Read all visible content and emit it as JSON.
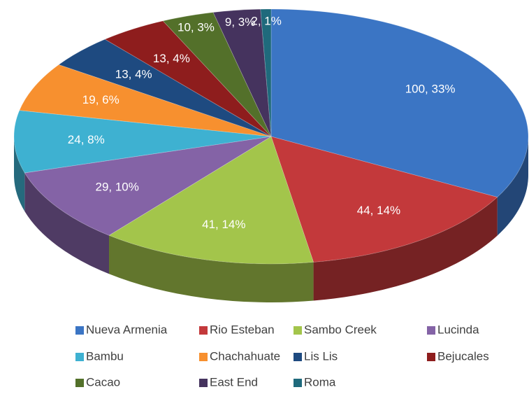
{
  "chart_data": {
    "type": "pie3d",
    "categories": [
      "Nueva Armenia",
      "Rio Esteban",
      "Sambo Creek",
      "Lucinda",
      "Bambu",
      "Chachahuate",
      "Lis Lis",
      "Bejucales",
      "Cacao",
      "East End",
      "Roma"
    ],
    "values": [
      100,
      44,
      41,
      29,
      24,
      19,
      13,
      13,
      10,
      9,
      2
    ],
    "value_labels": [
      "100, 33%",
      "44, 14%",
      "41, 14%",
      "29, 10%",
      "24, 8%",
      "19, 6%",
      "13, 4%",
      "13, 4%",
      "10, 3%",
      "9, 3%",
      "2, 1%"
    ],
    "colors": [
      "#3b75c4",
      "#c3393b",
      "#a3c54b",
      "#8463a6",
      "#3eb1d1",
      "#f7902f",
      "#1e4a80",
      "#8e1d1d",
      "#53702a",
      "#45335e",
      "#1f6a7c"
    ]
  }
}
